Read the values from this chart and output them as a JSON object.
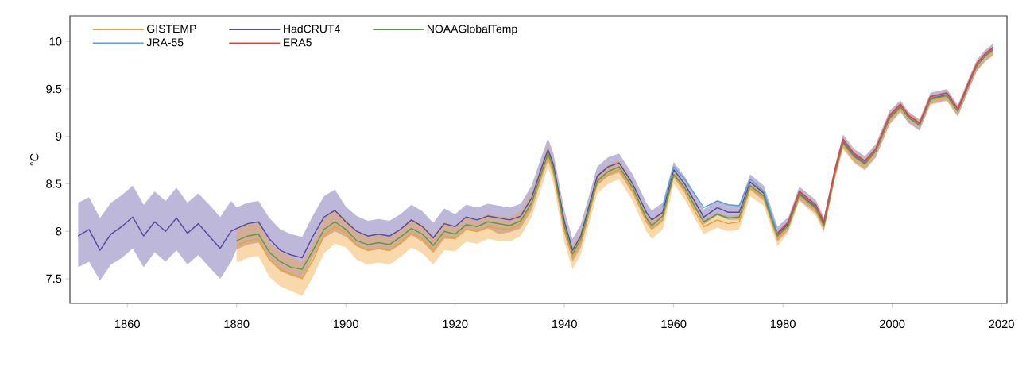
{
  "chart_data": {
    "type": "line",
    "ylabel": "°C",
    "xlim": [
      1849.5,
      2021
    ],
    "ylim": [
      7.24,
      10.27
    ],
    "xticks": [
      1860,
      1880,
      1900,
      1920,
      1940,
      1960,
      1980,
      2000,
      2020
    ],
    "yticks": [
      7.5,
      8,
      8.5,
      9,
      9.5,
      10
    ],
    "legend": "top left",
    "series": [
      {
        "name": "GISTEMP",
        "color": "#f0a030",
        "x": [
          1880,
          1882,
          1884,
          1886,
          1888,
          1890,
          1892,
          1894,
          1896,
          1898,
          1900,
          1902,
          1904,
          1906,
          1908,
          1910,
          1912,
          1914,
          1916,
          1918,
          1920,
          1922,
          1924,
          1926,
          1928,
          1930,
          1932,
          1934,
          1936,
          1937,
          1938,
          1940,
          1941.5,
          1943,
          1946,
          1948,
          1950,
          1952.5,
          1955,
          1956,
          1958,
          1960,
          1962,
          1964,
          1965.5,
          1968,
          1970,
          1972,
          1974,
          1976.5,
          1979,
          1981,
          1983,
          1986,
          1987.5,
          1989.5,
          1991,
          1993,
          1995,
          1997,
          1999.5,
          2001.5,
          2003,
          2005,
          2007,
          2010,
          2012,
          2014,
          2015.5,
          2017,
          2018.5
        ],
        "values": [
          7.85,
          7.9,
          7.92,
          7.7,
          7.6,
          7.55,
          7.5,
          7.7,
          7.95,
          8.05,
          7.98,
          7.85,
          7.8,
          7.82,
          7.8,
          7.88,
          7.98,
          7.92,
          7.8,
          7.95,
          7.92,
          8.02,
          8.0,
          8.05,
          8.03,
          8.02,
          8.08,
          8.28,
          8.62,
          8.8,
          8.62,
          8.0,
          7.72,
          7.88,
          8.5,
          8.6,
          8.65,
          8.42,
          8.1,
          8.02,
          8.12,
          8.58,
          8.42,
          8.2,
          8.05,
          8.12,
          8.08,
          8.1,
          8.45,
          8.35,
          7.92,
          8.05,
          8.38,
          8.22,
          8.05,
          8.6,
          8.92,
          8.78,
          8.7,
          8.84,
          9.18,
          9.3,
          9.2,
          9.12,
          9.38,
          9.42,
          9.26,
          9.54,
          9.74,
          9.84,
          9.9
        ],
        "lower": [
          7.67,
          7.72,
          7.74,
          7.52,
          7.42,
          7.37,
          7.32,
          7.52,
          7.77,
          7.87,
          7.83,
          7.7,
          7.65,
          7.67,
          7.65,
          7.73,
          7.83,
          7.77,
          7.65,
          7.8,
          7.79,
          7.89,
          7.87,
          7.92,
          7.9,
          7.89,
          7.95,
          8.15,
          8.5,
          8.68,
          8.5,
          7.88,
          7.6,
          7.76,
          8.4,
          8.5,
          8.55,
          8.32,
          8.0,
          7.92,
          8.02,
          8.5,
          8.34,
          8.12,
          7.97,
          8.04,
          8.0,
          8.02,
          8.37,
          8.27,
          7.84,
          7.99,
          8.32,
          8.16,
          7.99,
          8.54,
          8.86,
          8.72,
          8.64,
          8.78,
          9.12,
          9.25,
          9.15,
          9.07,
          9.33,
          9.37,
          9.21,
          9.49,
          9.69,
          9.79,
          9.85
        ],
        "upper": [
          8.03,
          8.08,
          8.1,
          7.88,
          7.78,
          7.73,
          7.68,
          7.88,
          8.13,
          8.23,
          8.13,
          8.0,
          7.95,
          7.97,
          7.95,
          8.03,
          8.13,
          8.07,
          7.95,
          8.1,
          8.05,
          8.15,
          8.13,
          8.18,
          8.16,
          8.15,
          8.21,
          8.41,
          8.74,
          8.92,
          8.74,
          8.12,
          7.84,
          8.0,
          8.6,
          8.7,
          8.75,
          8.52,
          8.2,
          8.12,
          8.22,
          8.66,
          8.5,
          8.28,
          8.13,
          8.2,
          8.16,
          8.18,
          8.53,
          8.43,
          8.0,
          8.11,
          8.44,
          8.28,
          8.11,
          8.66,
          8.98,
          8.84,
          8.76,
          8.9,
          9.24,
          9.35,
          9.25,
          9.17,
          9.43,
          9.47,
          9.31,
          9.59,
          9.79,
          9.89,
          9.95
        ]
      },
      {
        "name": "HadCRUT4",
        "color": "#5a4aa0",
        "x": [
          1851,
          1853,
          1855,
          1857,
          1859,
          1861,
          1863,
          1865,
          1867,
          1869,
          1871,
          1873,
          1875,
          1877,
          1879,
          1880,
          1882,
          1884,
          1886,
          1888,
          1890,
          1892,
          1894,
          1896,
          1898,
          1900,
          1902,
          1904,
          1906,
          1908,
          1910,
          1912,
          1914,
          1916,
          1918,
          1920,
          1922,
          1924,
          1926,
          1928,
          1930,
          1932,
          1934,
          1936,
          1937,
          1938,
          1940,
          1941.5,
          1943,
          1946,
          1948,
          1950,
          1952.5,
          1955,
          1956,
          1958,
          1960,
          1962,
          1964,
          1965.5,
          1968,
          1970,
          1972,
          1974,
          1976.5,
          1979,
          1981,
          1983,
          1986,
          1987.5,
          1989.5,
          1991,
          1993,
          1995,
          1997,
          1999.5,
          2001.5,
          2003,
          2005,
          2007,
          2010,
          2012,
          2014,
          2015.5,
          2017,
          2018.5
        ],
        "values": [
          7.95,
          8.02,
          7.8,
          7.97,
          8.05,
          8.15,
          7.95,
          8.1,
          8.0,
          8.14,
          7.98,
          8.08,
          7.95,
          7.82,
          8.0,
          8.03,
          8.08,
          8.1,
          7.92,
          7.8,
          7.75,
          7.72,
          7.95,
          8.15,
          8.22,
          8.1,
          8.0,
          7.95,
          7.97,
          7.95,
          8.02,
          8.12,
          8.05,
          7.93,
          8.08,
          8.05,
          8.15,
          8.12,
          8.16,
          8.14,
          8.12,
          8.16,
          8.35,
          8.7,
          8.86,
          8.7,
          8.1,
          7.8,
          7.95,
          8.58,
          8.68,
          8.72,
          8.5,
          8.2,
          8.12,
          8.2,
          8.65,
          8.5,
          8.3,
          8.15,
          8.25,
          8.2,
          8.2,
          8.52,
          8.4,
          7.97,
          8.08,
          8.4,
          8.26,
          8.08,
          8.62,
          8.95,
          8.8,
          8.72,
          8.85,
          9.2,
          9.32,
          9.2,
          9.12,
          9.4,
          9.44,
          9.27,
          9.55,
          9.75,
          9.85,
          9.92
        ],
        "lower": [
          7.62,
          7.68,
          7.48,
          7.65,
          7.72,
          7.82,
          7.62,
          7.78,
          7.68,
          7.8,
          7.65,
          7.75,
          7.62,
          7.5,
          7.68,
          7.81,
          7.86,
          7.88,
          7.7,
          7.58,
          7.53,
          7.5,
          7.73,
          7.93,
          8.0,
          7.94,
          7.84,
          7.79,
          7.81,
          7.79,
          7.86,
          7.96,
          7.89,
          7.77,
          7.92,
          7.92,
          8.02,
          7.99,
          8.03,
          7.97,
          7.99,
          8.03,
          8.22,
          8.58,
          8.74,
          8.58,
          7.98,
          7.68,
          7.83,
          8.48,
          8.58,
          8.62,
          8.4,
          8.1,
          8.02,
          8.1,
          8.57,
          8.42,
          8.22,
          8.07,
          8.17,
          8.12,
          8.12,
          8.44,
          8.32,
          7.89,
          8.01,
          8.33,
          8.19,
          8.01,
          8.55,
          8.88,
          8.73,
          8.65,
          8.78,
          9.13,
          9.26,
          9.14,
          9.06,
          9.34,
          9.38,
          9.21,
          9.49,
          9.69,
          9.79,
          9.86
        ],
        "upper": [
          8.3,
          8.36,
          8.14,
          8.3,
          8.38,
          8.48,
          8.28,
          8.42,
          8.32,
          8.46,
          8.3,
          8.4,
          8.28,
          8.15,
          8.32,
          8.25,
          8.3,
          8.32,
          8.14,
          8.02,
          7.97,
          7.94,
          8.17,
          8.37,
          8.44,
          8.26,
          8.16,
          8.11,
          8.13,
          8.11,
          8.18,
          8.28,
          8.21,
          8.09,
          8.24,
          8.18,
          8.28,
          8.25,
          8.29,
          8.27,
          8.25,
          8.29,
          8.48,
          8.82,
          8.98,
          8.82,
          8.22,
          7.92,
          8.07,
          8.68,
          8.78,
          8.82,
          8.6,
          8.3,
          8.22,
          8.3,
          8.73,
          8.58,
          8.38,
          8.23,
          8.33,
          8.28,
          8.28,
          8.6,
          8.48,
          8.05,
          8.15,
          8.47,
          8.33,
          8.15,
          8.69,
          9.02,
          8.87,
          8.79,
          8.92,
          9.27,
          9.38,
          9.26,
          9.18,
          9.46,
          9.5,
          9.33,
          9.61,
          9.81,
          9.91,
          9.98
        ]
      },
      {
        "name": "NOAAGlobalTemp",
        "color": "#5a9a48",
        "x": [
          1880,
          1882,
          1884,
          1886,
          1888,
          1890,
          1892,
          1894,
          1896,
          1898,
          1900,
          1902,
          1904,
          1906,
          1908,
          1910,
          1912,
          1914,
          1916,
          1918,
          1920,
          1922,
          1924,
          1926,
          1928,
          1930,
          1932,
          1934,
          1936,
          1937,
          1938,
          1940,
          1941.5,
          1943,
          1946,
          1948,
          1950,
          1952.5,
          1955,
          1956,
          1958,
          1960,
          1962,
          1964,
          1965.5,
          1968,
          1970,
          1972,
          1974,
          1976.5,
          1979,
          1981,
          1983,
          1986,
          1987.5,
          1989.5,
          1991,
          1993,
          1995,
          1997,
          1999.5,
          2001.5,
          2003,
          2005,
          2007,
          2010,
          2012,
          2014,
          2015.5,
          2017,
          2018.5
        ],
        "values": [
          7.9,
          7.95,
          7.97,
          7.78,
          7.68,
          7.62,
          7.6,
          7.8,
          8.02,
          8.1,
          8.02,
          7.9,
          7.86,
          7.88,
          7.86,
          7.94,
          8.03,
          7.97,
          7.85,
          8.0,
          7.97,
          8.07,
          8.05,
          8.1,
          8.08,
          8.06,
          8.11,
          8.3,
          8.65,
          8.82,
          8.66,
          8.05,
          7.76,
          7.92,
          8.53,
          8.63,
          8.68,
          8.46,
          8.14,
          8.06,
          8.16,
          8.6,
          8.46,
          8.25,
          8.1,
          8.18,
          8.14,
          8.15,
          8.48,
          8.37,
          7.95,
          8.06,
          8.39,
          8.24,
          8.06,
          8.61,
          8.93,
          8.79,
          8.71,
          8.85,
          9.19,
          9.31,
          9.2,
          9.12,
          9.39,
          9.43,
          9.27,
          9.55,
          9.75,
          9.85,
          9.91
        ]
      },
      {
        "name": "JRA-55",
        "color": "#5aa0d8",
        "x": [
          1958,
          1960,
          1962,
          1964,
          1965.5,
          1968,
          1970,
          1972,
          1974,
          1976.5,
          1979,
          1981,
          1983,
          1986,
          1987.5,
          1989.5,
          1991,
          1993,
          1995,
          1997,
          1999.5,
          2001.5,
          2003,
          2005,
          2007,
          2010,
          2012,
          2014,
          2015.5,
          2017,
          2018.5
        ],
        "values": [
          8.25,
          8.68,
          8.55,
          8.38,
          8.25,
          8.32,
          8.28,
          8.27,
          8.55,
          8.42,
          7.98,
          8.1,
          8.41,
          8.27,
          8.1,
          8.63,
          8.96,
          8.81,
          8.73,
          8.86,
          9.21,
          9.33,
          9.21,
          9.13,
          9.41,
          9.45,
          9.28,
          9.56,
          9.76,
          9.86,
          9.93
        ]
      },
      {
        "name": "ERA5",
        "color": "#e8403a",
        "x": [
          1979,
          1981,
          1983,
          1986,
          1987.5,
          1989.5,
          1991,
          1993,
          1995,
          1997,
          1999.5,
          2001.5,
          2003,
          2005,
          2007,
          2010,
          2012,
          2014,
          2015.5,
          2017,
          2018.5
        ],
        "values": [
          7.98,
          8.1,
          8.42,
          8.28,
          8.1,
          8.64,
          8.97,
          8.82,
          8.74,
          8.87,
          9.22,
          9.34,
          9.22,
          9.14,
          9.42,
          9.46,
          9.29,
          9.57,
          9.77,
          9.87,
          9.94
        ]
      }
    ]
  }
}
